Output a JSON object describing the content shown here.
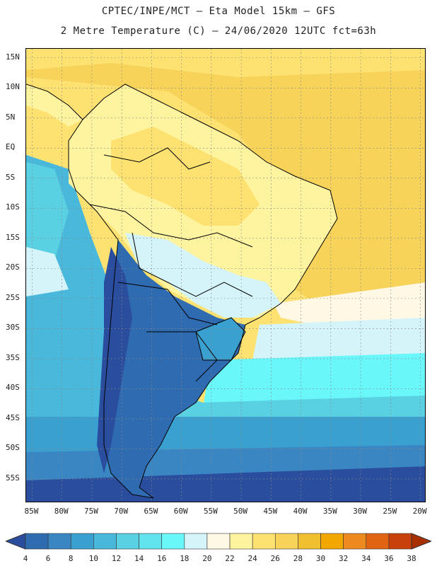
{
  "header": {
    "line1": "CPTEC/INPE/MCT –  Eta Model 15km – GFS",
    "line2": "2 Metre Temperature (C) – 24/06/2020 12UTC fct=63h"
  },
  "map": {
    "lat_labels": [
      "15N",
      "10N",
      "5N",
      "EQ",
      "5S",
      "10S",
      "15S",
      "20S",
      "25S",
      "30S",
      "35S",
      "40S",
      "45S",
      "50S",
      "55S"
    ],
    "lon_labels": [
      "85W",
      "80W",
      "75W",
      "70W",
      "65W",
      "60W",
      "55W",
      "50W",
      "45W",
      "40W",
      "35W",
      "30W",
      "25W",
      "20W"
    ],
    "lon_range": [
      -86,
      -19
    ],
    "lat_range": [
      16.5,
      -59
    ]
  },
  "legend": {
    "values": [
      "4",
      "6",
      "8",
      "10",
      "12",
      "14",
      "16",
      "18",
      "20",
      "22",
      "24",
      "26",
      "28",
      "30",
      "32",
      "34",
      "36",
      "38"
    ],
    "colors": [
      "#2a4d9e",
      "#2f6bb0",
      "#3a86c3",
      "#3aa0d0",
      "#49b8da",
      "#5ad0e3",
      "#62e3ee",
      "#6af7fa",
      "#d4f4fa",
      "#fff8e4",
      "#fef4a0",
      "#fde272",
      "#f7d35a",
      "#f0c030",
      "#f2a800",
      "#ec8a20",
      "#e06412",
      "#c8400a",
      "#a83000"
    ]
  }
}
